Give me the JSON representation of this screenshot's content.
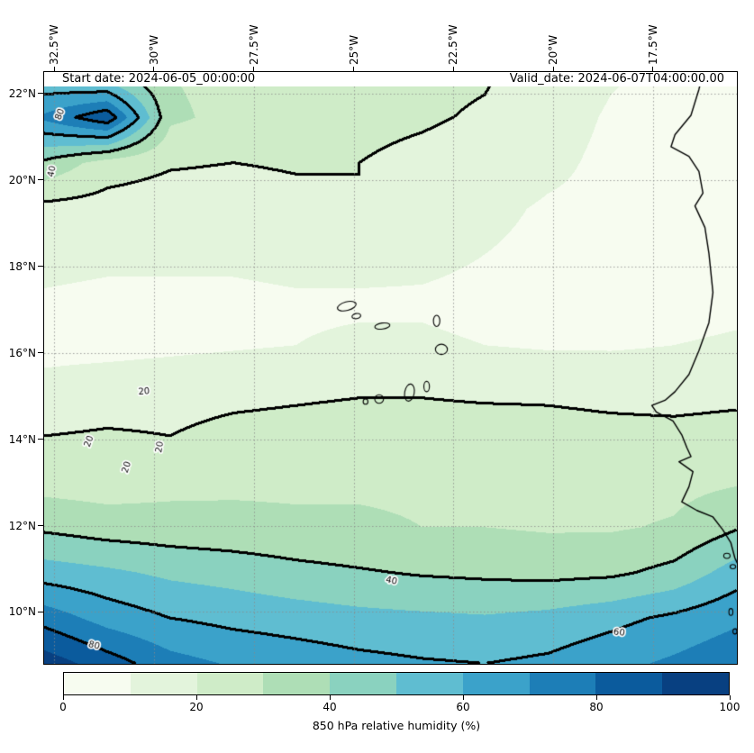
{
  "header": {
    "start_date": "Start date: 2024-06-05_00:00:00",
    "valid_date": "Valid_date: 2024-06-07T04:00:00.00"
  },
  "chart_data": {
    "type": "heatmap",
    "title": "850 hPa relative humidity (%)",
    "extent": {
      "lon_min": -32.75,
      "lon_max": -15.4,
      "lat_min": 8.8,
      "lat_max": 22.5
    },
    "axis": {
      "x": {
        "labels": [
          "32.5°W",
          "30°W",
          "27.5°W",
          "25°W",
          "22.5°W",
          "20°W",
          "17.5°W"
        ],
        "lons": [
          -32.5,
          -30,
          -27.5,
          -25,
          -22.5,
          -20,
          -17.5
        ]
      },
      "y": {
        "labels": [
          "22°N",
          "20°N",
          "18°N",
          "16°N",
          "14°N",
          "12°N",
          "10°N"
        ],
        "lats": [
          22,
          20,
          18,
          16,
          14,
          12,
          10
        ]
      }
    },
    "grid_lons": [
      -32.5,
      -30,
      -27.5,
      -25,
      -22.5,
      -20,
      -17.5
    ],
    "grid_lats": [
      10,
      12,
      14,
      16,
      18,
      20,
      22
    ],
    "x_lons": [
      -32.75,
      -31.17,
      -29.6,
      -28.02,
      -26.44,
      -24.86,
      -23.29,
      -21.71,
      -20.13,
      -18.55,
      -16.98,
      -15.4
    ],
    "y_lats": [
      22.5,
      21.45,
      20.39,
      19.34,
      18.28,
      17.23,
      16.18,
      15.12,
      14.07,
      13.02,
      11.96,
      10.91,
      9.85,
      8.8
    ],
    "values_rh_percent": [
      [
        48,
        38,
        30,
        27,
        25,
        23,
        22,
        21,
        16,
        11,
        8,
        6
      ],
      [
        72,
        88,
        32,
        27,
        24,
        22,
        21,
        19,
        14,
        9,
        7,
        6
      ],
      [
        38,
        25,
        21,
        20,
        21,
        20,
        18,
        16,
        12,
        8,
        7,
        7
      ],
      [
        17,
        16,
        15,
        15,
        17,
        20,
        16,
        12,
        9,
        8,
        7,
        7
      ],
      [
        13,
        12,
        12,
        12,
        13,
        13,
        12,
        10,
        8,
        7,
        7,
        8
      ],
      [
        9,
        8,
        8,
        8,
        9,
        9,
        9,
        8,
        7,
        7,
        7,
        8
      ],
      [
        7,
        7,
        8,
        9,
        10,
        11,
        11,
        10,
        9,
        9,
        10,
        11
      ],
      [
        13,
        15,
        16,
        17,
        18,
        19,
        19,
        18,
        18,
        17,
        16,
        17
      ],
      [
        20,
        21,
        20,
        23,
        24,
        25,
        25,
        25,
        24,
        23,
        23,
        24
      ],
      [
        26,
        25,
        27,
        28,
        28,
        29,
        29,
        28,
        27,
        27,
        27,
        29
      ],
      [
        38,
        35,
        34,
        33,
        32,
        31,
        30,
        30,
        29,
        29,
        31,
        39
      ],
      [
        55,
        52,
        48,
        46,
        43,
        41,
        39,
        38,
        37,
        38,
        43,
        55
      ],
      [
        76,
        66,
        60,
        57,
        55,
        53,
        52,
        51,
        53,
        57,
        62,
        68
      ],
      [
        96,
        85,
        74,
        69,
        66,
        63,
        61,
        60,
        62,
        67,
        72,
        78
      ]
    ],
    "fill_levels": [
      0,
      10,
      20,
      30,
      40,
      50,
      60,
      70,
      80,
      90,
      100
    ],
    "line_levels": [
      20,
      40,
      60,
      80
    ],
    "contour_labels": [
      {
        "text": "80",
        "lon": -32.35,
        "lat": 21.52,
        "rot": -70
      },
      {
        "text": "40",
        "lon": -32.55,
        "lat": 20.2,
        "rot": -80
      },
      {
        "text": "20",
        "lon": -30.25,
        "lat": 15.1,
        "rot": -4
      },
      {
        "text": "20",
        "lon": -31.62,
        "lat": 13.95,
        "rot": -70
      },
      {
        "text": "20",
        "lon": -30.68,
        "lat": 13.35,
        "rot": -72
      },
      {
        "text": "20",
        "lon": -29.85,
        "lat": 13.82,
        "rot": -80
      },
      {
        "text": "40",
        "lon": -24.05,
        "lat": 10.72,
        "rot": 12
      },
      {
        "text": "60",
        "lon": -18.35,
        "lat": 9.52,
        "rot": 8
      },
      {
        "text": "80",
        "lon": -31.5,
        "lat": 9.22,
        "rot": 15
      }
    ],
    "colorbar": {
      "label": "850 hPa relative humidity (%)",
      "tick_labels": [
        "0",
        "20",
        "40",
        "60",
        "80",
        "100"
      ],
      "colors": [
        "#f7fcf0",
        "#e3f4dc",
        "#cfecc8",
        "#aedeb6",
        "#8ad2bf",
        "#5fbdd1",
        "#3ba2ca",
        "#1d7eb7",
        "#0b5b9d",
        "#084081"
      ]
    },
    "map": {
      "coastline": [
        [
          -16.25,
          22.5
        ],
        [
          -16.35,
          22.1
        ],
        [
          -16.55,
          21.5
        ],
        [
          -16.95,
          21.05
        ],
        [
          -17.05,
          20.77
        ],
        [
          -16.6,
          20.55
        ],
        [
          -16.35,
          20.2
        ],
        [
          -16.25,
          19.7
        ],
        [
          -16.45,
          19.4
        ],
        [
          -16.2,
          18.9
        ],
        [
          -16.1,
          18.3
        ],
        [
          -16.0,
          17.4
        ],
        [
          -16.1,
          16.7
        ],
        [
          -16.35,
          16.05
        ],
        [
          -16.6,
          15.5
        ],
        [
          -16.95,
          15.1
        ],
        [
          -17.2,
          14.9
        ],
        [
          -17.53,
          14.78
        ],
        [
          -17.42,
          14.63
        ],
        [
          -17.0,
          14.42
        ],
        [
          -16.78,
          14.1
        ],
        [
          -16.65,
          13.8
        ],
        [
          -16.55,
          13.6
        ],
        [
          -16.85,
          13.48
        ],
        [
          -16.5,
          13.25
        ],
        [
          -16.6,
          12.9
        ],
        [
          -16.78,
          12.55
        ],
        [
          -16.4,
          12.35
        ],
        [
          -16.0,
          12.2
        ],
        [
          -15.75,
          11.9
        ],
        [
          -15.55,
          11.6
        ],
        [
          -15.45,
          11.25
        ],
        [
          -15.2,
          10.75
        ],
        [
          -15.0,
          10.4
        ],
        [
          -14.8,
          10.0
        ],
        [
          -14.55,
          9.5
        ],
        [
          -14.4,
          9.0
        ],
        [
          -14.35,
          8.8
        ]
      ],
      "islands": [
        [
          -25.17,
          17.08,
          0.24,
          0.1,
          -15
        ],
        [
          -24.93,
          16.85,
          0.11,
          0.06,
          -10
        ],
        [
          -24.28,
          16.62,
          0.19,
          0.07,
          -8
        ],
        [
          -22.92,
          16.74,
          0.08,
          0.13,
          0
        ],
        [
          -22.8,
          16.08,
          0.15,
          0.12,
          0
        ],
        [
          -23.17,
          15.22,
          0.07,
          0.12,
          0
        ],
        [
          -23.6,
          15.08,
          0.12,
          0.2,
          10
        ],
        [
          -24.36,
          14.93,
          0.11,
          0.1,
          0
        ],
        [
          -24.7,
          14.87,
          0.06,
          0.06,
          0
        ],
        [
          -15.65,
          11.3,
          0.08,
          0.06,
          0
        ],
        [
          -15.5,
          11.05,
          0.07,
          0.05,
          0
        ],
        [
          -15.55,
          10.0,
          0.05,
          0.08,
          0
        ],
        [
          -15.45,
          9.55,
          0.05,
          0.06,
          0
        ]
      ]
    },
    "style": {
      "contour_color": "#000000",
      "coast_color": "#000000",
      "grid_color": "#8a8a8a"
    }
  }
}
